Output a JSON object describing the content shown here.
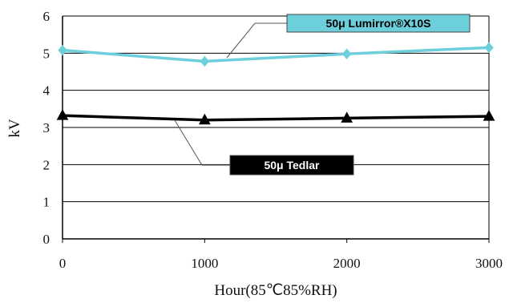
{
  "chart_data": {
    "type": "line",
    "ylabel": "kV",
    "xlabel": "Hour(85℃85%RH)",
    "x": [
      0,
      1000,
      2000,
      3000
    ],
    "xticks": [
      "0",
      "1000",
      "2000",
      "3000"
    ],
    "ylim": [
      0,
      6
    ],
    "yticks": [
      "0",
      "1",
      "2",
      "3",
      "4",
      "5",
      "6"
    ],
    "grid": "horizontal",
    "series": [
      {
        "name": "50μ Lumirror®X10S",
        "values": [
          5.08,
          4.78,
          4.98,
          5.15
        ],
        "color": "#6ecfdc",
        "marker": "diamond",
        "label_background": "#6ecfdc",
        "label_color": "#000000"
      },
      {
        "name": "50μ Tedlar",
        "values": [
          3.32,
          3.2,
          3.25,
          3.3
        ],
        "color": "#000000",
        "marker": "triangle",
        "label_background": "#000000",
        "label_color": "#ffffff"
      }
    ]
  }
}
